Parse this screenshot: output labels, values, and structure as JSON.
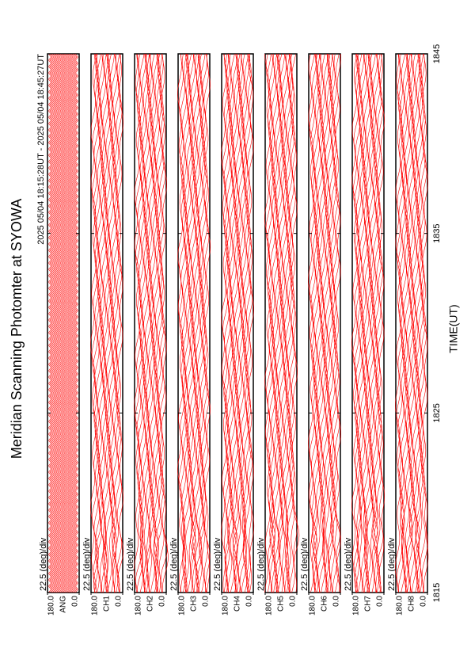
{
  "chart_data": {
    "type": "line",
    "title": "Meridian Scanning Photomter at SYOWA",
    "subtitle": "2025 05/04 18:15:28UT - 2025 05/04 18:45:27UT",
    "x_label": "TIME(UT)",
    "xlim": [
      1815,
      1845
    ],
    "xticks": [
      1815,
      1825,
      1835,
      1845
    ],
    "color": "#ff0000",
    "panels": [
      {
        "label": "22.5 (deg)/div",
        "channel": "ANG",
        "ylim": [
          0,
          180
        ],
        "yticks": [
          {
            "value": 0,
            "label": "0.0"
          },
          {
            "value": 180,
            "label": "180.0"
          }
        ]
      },
      {
        "label": "22.5 (deg)/div",
        "channel": "CH1",
        "ylim": [
          0,
          180
        ],
        "yticks": [
          {
            "value": 0,
            "label": "0.0"
          },
          {
            "value": 180,
            "label": "180.0"
          }
        ]
      },
      {
        "label": "22.5 (deg)/div",
        "channel": "CH2",
        "ylim": [
          0,
          180
        ],
        "yticks": [
          {
            "value": 0,
            "label": "0.0"
          },
          {
            "value": 180,
            "label": "180.0"
          }
        ]
      },
      {
        "label": "22.5 (deg)/div",
        "channel": "CH3",
        "ylim": [
          0,
          180
        ],
        "yticks": [
          {
            "value": 0,
            "label": "0.0"
          },
          {
            "value": 180,
            "label": "180.0"
          }
        ]
      },
      {
        "label": "22.5 (deg)/div",
        "channel": "CH4",
        "ylim": [
          0,
          180
        ],
        "yticks": [
          {
            "value": 0,
            "label": "0.0"
          },
          {
            "value": 180,
            "label": "180.0"
          }
        ]
      },
      {
        "label": "22.5 (deg)/div",
        "channel": "CH5",
        "ylim": [
          0,
          180
        ],
        "yticks": [
          {
            "value": 0,
            "label": "0.0"
          },
          {
            "value": 180,
            "label": "180.0"
          }
        ]
      },
      {
        "label": "22.5 (deg)/div",
        "channel": "CH6",
        "ylim": [
          0,
          180
        ],
        "yticks": [
          {
            "value": 0,
            "label": "0.0"
          },
          {
            "value": 180,
            "label": "180.0"
          }
        ]
      },
      {
        "label": "22.5 (deg)/div",
        "channel": "CH7",
        "ylim": [
          0,
          180
        ],
        "yticks": [
          {
            "value": 0,
            "label": "0.0"
          },
          {
            "value": 180,
            "label": "180.0"
          }
        ]
      },
      {
        "label": "22.5 (deg)/div",
        "channel": "CH8",
        "ylim": [
          0,
          180
        ],
        "yticks": [
          {
            "value": 0,
            "label": "0.0"
          },
          {
            "value": 180,
            "label": "180.0"
          }
        ]
      }
    ]
  }
}
